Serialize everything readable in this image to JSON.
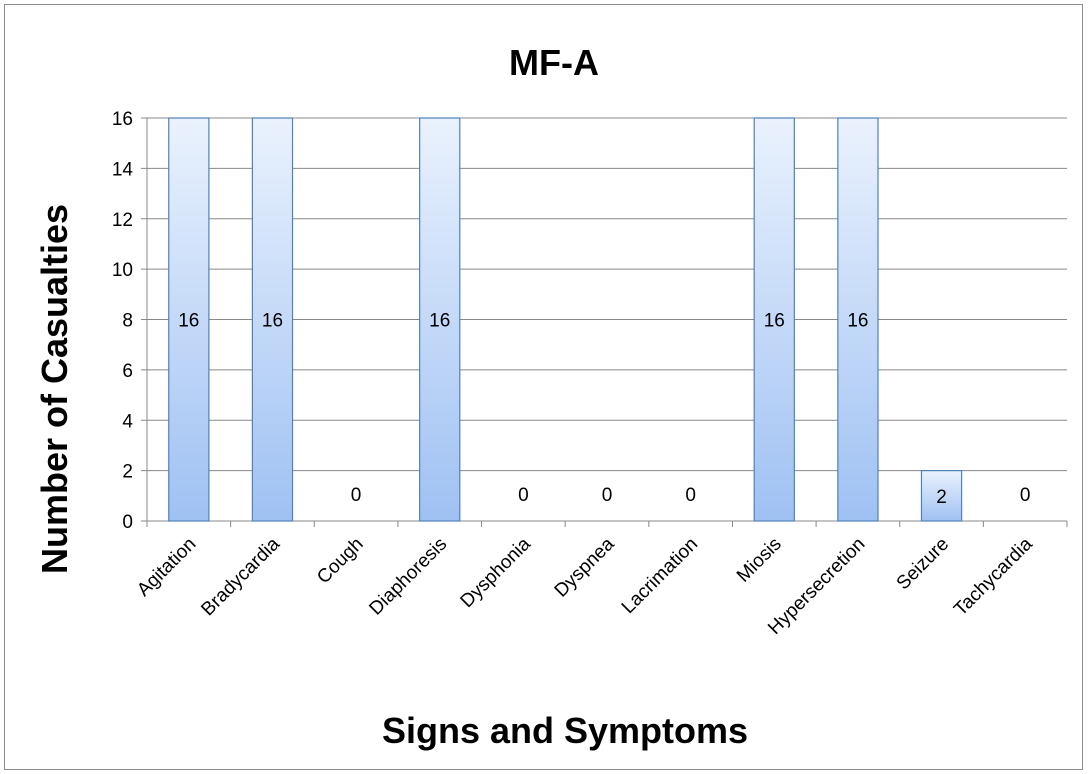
{
  "chart_data": {
    "type": "bar",
    "title": "MF-A",
    "xlabel": "Signs and Symptoms",
    "ylabel": "Number of Casualties",
    "categories": [
      "Agitation",
      "Bradycardia",
      "Cough",
      "Diaphoresis",
      "Dysphonia",
      "Dyspnea",
      "Lacrimation",
      "Miosis",
      "Hypersecretion",
      "Seizure",
      "Tachycardia"
    ],
    "values": [
      16,
      16,
      0,
      16,
      0,
      0,
      0,
      16,
      16,
      2,
      0
    ],
    "ylim": [
      0,
      16
    ],
    "yticks": [
      0,
      2,
      4,
      6,
      8,
      10,
      12,
      14,
      16
    ],
    "grid": true,
    "legend": "none",
    "data_labels": true,
    "bar_color_top": "#eaf2fd",
    "bar_color_bottom": "#9fc1f3",
    "bar_border": "#4f81bd"
  }
}
